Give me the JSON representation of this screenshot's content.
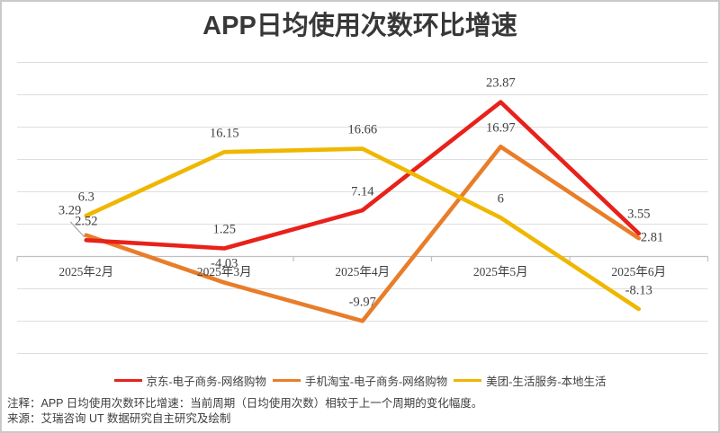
{
  "title": "APP日均使用次数环比增速",
  "notes": {
    "line1": "注释：APP 日均使用次数环比增速：当前周期（日均使用次数）相较于上一个周期的变化幅度。",
    "line2": "来源：艾瑞咨询 UT 数据研究自主研究及绘制"
  },
  "colors": {
    "gridline": "#dedede",
    "axis_line": "#bfbfbf",
    "label_text": "#404040",
    "leader_line": "#a6a6a6"
  },
  "chart_data": {
    "type": "line",
    "title": "APP日均使用次数环比增速",
    "categories": [
      "2025年2月",
      "2025年3月",
      "2025年4月",
      "2025年5月",
      "2025年6月"
    ],
    "series": [
      {
        "name": "京东-电子商务-网络购物",
        "color": "#e8211a",
        "values": [
          2.52,
          1.25,
          7.14,
          23.87,
          3.55
        ],
        "label_offsets": {},
        "z": 1
      },
      {
        "name": "手机淘宝-电子商务-网络购物",
        "color": "#e87d2a",
        "values": [
          3.29,
          -4.03,
          -9.97,
          16.97,
          2.81
        ],
        "label_offsets": {
          "0": [
            -18.2,
            -26.8
          ],
          "4": [
            14.8,
            -0.3
          ]
        },
        "z": 0
      },
      {
        "name": "美团-生活服务-本地生活",
        "color": "#efb700",
        "values": [
          6.3,
          16.15,
          16.66,
          6,
          -8.13
        ],
        "label_offsets": {},
        "z": 2
      }
    ],
    "xlabel": "",
    "ylabel": "",
    "ylim": [
      -15,
      30
    ],
    "ystep": 5,
    "y_tick_labels_hidden": true,
    "grid": true,
    "legend_position": "bottom",
    "data_labels": true
  }
}
